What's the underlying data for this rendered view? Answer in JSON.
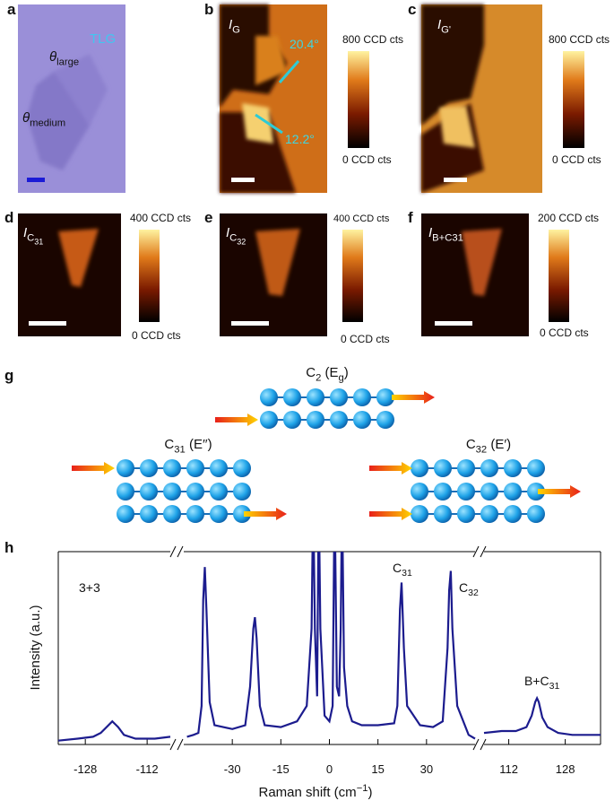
{
  "figure": {
    "panel_labels": [
      "a",
      "b",
      "c",
      "d",
      "e",
      "f",
      "g",
      "h"
    ],
    "a": {
      "tlg": "TLG",
      "theta_large": [
        {
          "italic": "θ"
        },
        {
          "sub": "large"
        }
      ],
      "theta_medium": [
        {
          "italic": "θ"
        },
        {
          "sub": "medium"
        }
      ]
    },
    "b": {
      "intensity": [
        {
          "italic": "I"
        },
        {
          "sub": "G"
        }
      ],
      "angle_top": "20.4°",
      "angle_bottom": "12.2°",
      "cbar_max": "800 CCD cts",
      "cbar_min": "0 CCD cts"
    },
    "c": {
      "intensity": [
        {
          "italic": "I"
        },
        {
          "sub": "G'"
        }
      ],
      "cbar_max": "800 CCD cts",
      "cbar_min": "0 CCD cts"
    },
    "d": {
      "intensity": [
        {
          "italic": "I"
        },
        {
          "sub": "C"
        },
        {
          "subsub": "31"
        }
      ],
      "cbar_max": "400 CCD cts",
      "cbar_min": "0 CCD cts"
    },
    "e": {
      "intensity": [
        {
          "italic": "I"
        },
        {
          "sub": "C"
        },
        {
          "subsub": "32"
        }
      ],
      "cbar_max": "400 CCD cts",
      "cbar_min": "0 CCD cts"
    },
    "f": {
      "intensity": [
        {
          "italic": "I"
        },
        {
          "sub": "B+C31"
        }
      ],
      "cbar_max": "200 CCD cts",
      "cbar_min": "0 CCD cts"
    },
    "g": {
      "modes": [
        [
          {
            "text": "C"
          },
          {
            "sub": "2"
          },
          {
            "text": " (E"
          },
          {
            "sub": "g"
          },
          {
            "text": ")"
          }
        ],
        [
          {
            "text": "C"
          },
          {
            "sub": "31"
          },
          {
            "text": " (E′′)"
          }
        ],
        [
          {
            "text": "C"
          },
          {
            "sub": "32"
          },
          {
            "text": " (E′)"
          }
        ]
      ]
    }
  },
  "chart_data": {
    "type": "line",
    "x_label": [
      {
        "text": "Raman shift (cm"
      },
      {
        "sup": "−1"
      },
      {
        "text": ")"
      }
    ],
    "y_label": [
      {
        "text": "Intensity (a.u.)"
      }
    ],
    "color": "#1c1c8e",
    "ylim": [
      0,
      100
    ],
    "annotations": [
      [
        {
          "text": "3+3"
        }
      ],
      [
        {
          "text": "C"
        },
        {
          "sub": "31"
        }
      ],
      [
        {
          "text": "C"
        },
        {
          "sub": "32"
        }
      ],
      [
        {
          "text": "B+C"
        },
        {
          "sub": "31"
        }
      ]
    ],
    "segments": [
      {
        "xlim": [
          -135,
          -106
        ],
        "xticks": [
          -128,
          -112
        ],
        "x": [
          -135,
          -130,
          -126,
          -124,
          -122.5,
          -121,
          -119.5,
          -118,
          -115,
          -110,
          -106
        ],
        "values": [
          2,
          3,
          4,
          6,
          9,
          12,
          9,
          5,
          3,
          3,
          4
        ]
      },
      {
        "xlim": [
          -45,
          45
        ],
        "xticks": [
          -30,
          -15,
          0,
          15,
          30
        ],
        "x": [
          -44,
          -42,
          -40.5,
          -39.5,
          -39,
          -38.5,
          -38,
          -37,
          -35.5,
          -30,
          -26,
          -24.5,
          -23.5,
          -23,
          -22.5,
          -21.5,
          -20,
          -15,
          -10,
          -7,
          -5.5,
          -5,
          -4.5,
          -3.8,
          -3.3,
          -2.8,
          -1.5,
          0,
          1,
          1.6,
          2.3,
          3,
          3.5,
          3.9,
          4.5,
          5.5,
          7,
          10,
          15,
          20,
          21,
          21.8,
          22.3,
          23,
          24,
          28,
          32,
          35,
          36.5,
          37,
          37.5,
          38,
          39.5,
          43,
          45
        ],
        "values": [
          4,
          5,
          6,
          20,
          75,
          92,
          70,
          22,
          10,
          8,
          10,
          30,
          60,
          66,
          55,
          20,
          10,
          9,
          12,
          20,
          60,
          130,
          60,
          25,
          130,
          60,
          15,
          12,
          20,
          130,
          30,
          25,
          60,
          130,
          40,
          20,
          12,
          10,
          10,
          11,
          20,
          70,
          84,
          50,
          20,
          10,
          9,
          12,
          50,
          80,
          90,
          60,
          20,
          5,
          3
        ]
      },
      {
        "xlim": [
          105,
          138
        ],
        "xticks": [
          112,
          128
        ],
        "x": [
          105,
          110,
          114,
          117,
          118.5,
          119.5,
          120,
          120.5,
          121.5,
          123,
          126,
          130,
          134,
          138
        ],
        "values": [
          6,
          7,
          7,
          9,
          15,
          22,
          24,
          22,
          14,
          9,
          6,
          5,
          5,
          5
        ]
      }
    ]
  }
}
